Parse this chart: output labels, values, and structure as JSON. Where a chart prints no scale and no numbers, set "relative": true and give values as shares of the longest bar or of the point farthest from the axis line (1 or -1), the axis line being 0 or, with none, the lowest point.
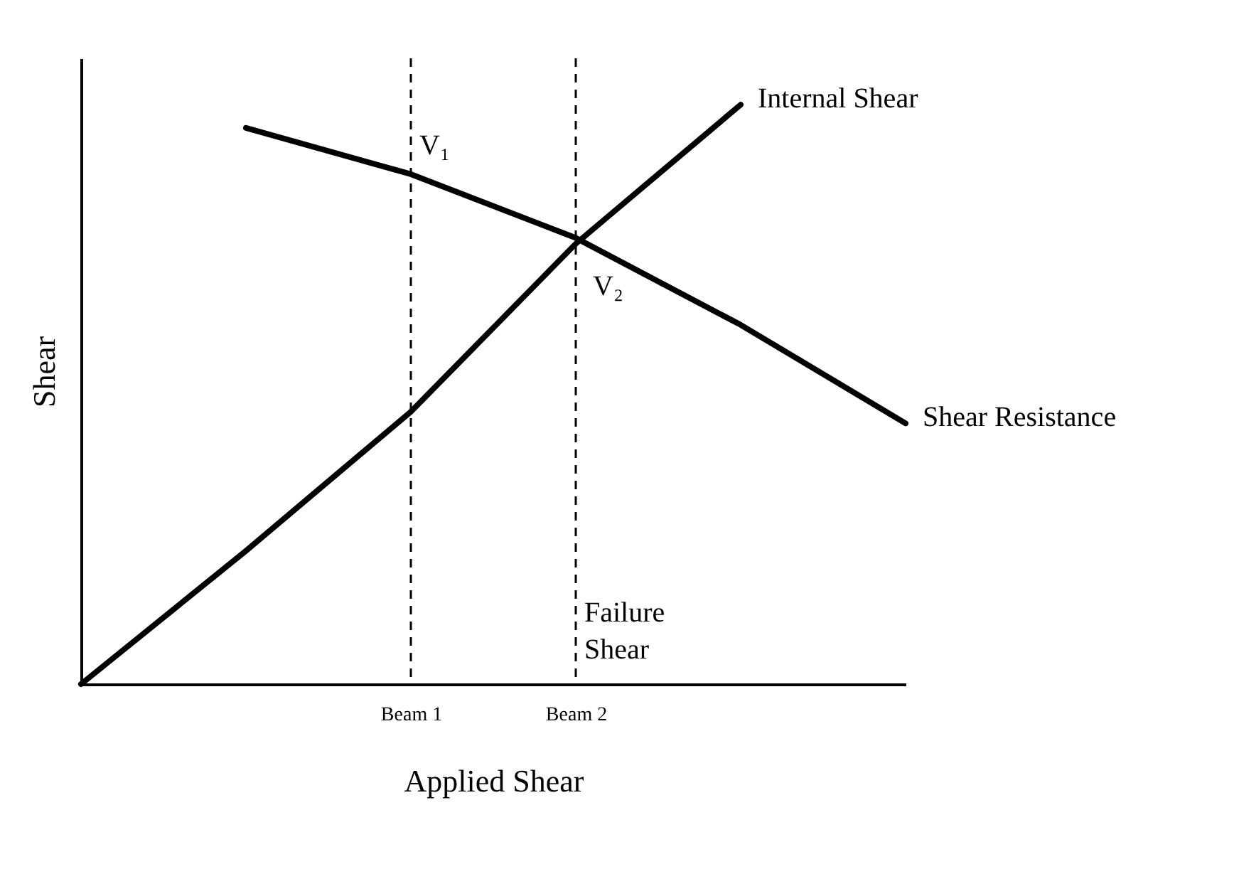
{
  "chart_data": {
    "type": "line",
    "relative": true,
    "xlabel": "Applied Shear",
    "ylabel": "Shear",
    "categories": [
      null,
      null,
      "Beam 1",
      "Beam 2",
      null,
      null
    ],
    "series": [
      {
        "name": "Internal Shear",
        "color": "#000000",
        "values": [
          0,
          0.23,
          0.47,
          0.76,
          1,
          null
        ]
      },
      {
        "name": "Shear Resistance",
        "color": "#000000",
        "values": [
          null,
          0.96,
          0.88,
          0.77,
          0.62,
          0.45
        ]
      }
    ],
    "ref_lines": [
      {
        "axis": "x",
        "value": "Beam 1",
        "line_style": "dashed"
      },
      {
        "axis": "x",
        "value": "Beam 2",
        "label": "Failure Shear",
        "line_style": "dashed"
      }
    ],
    "annotations": [
      {
        "text": "V₁",
        "x": "Beam 1",
        "y": 0.88
      },
      {
        "text": "V₂",
        "x": "Beam 2",
        "y": 0.77
      }
    ],
    "legend": false,
    "grid": false
  }
}
